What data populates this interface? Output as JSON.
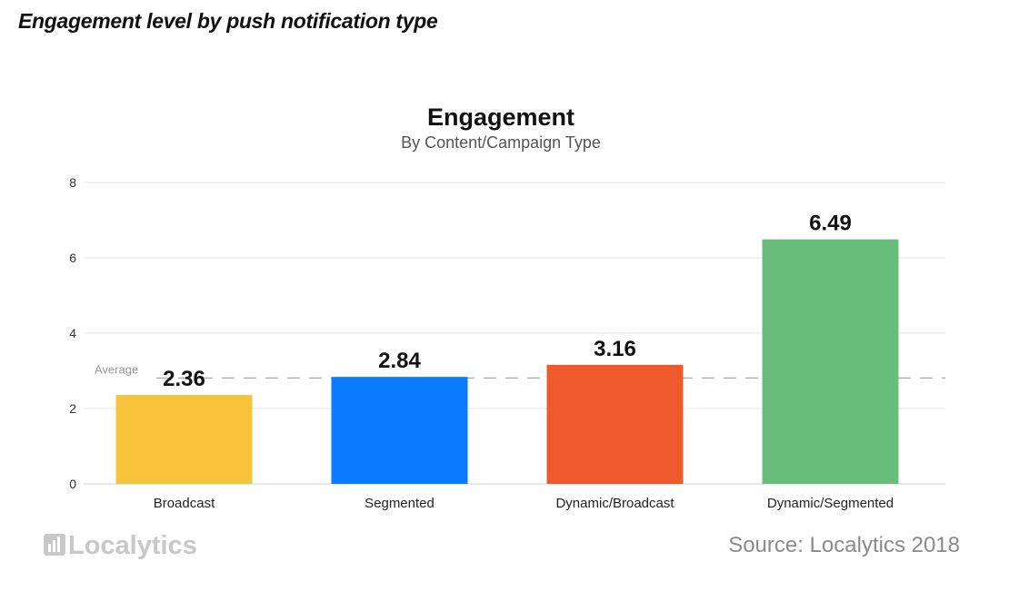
{
  "page_heading": "Engagement level by push notification type",
  "chart_data": {
    "type": "bar",
    "title": "Engagement",
    "subtitle": "By Content/Campaign Type",
    "categories": [
      "Broadcast",
      "Segmented",
      "Dynamic/Broadcast",
      "Dynamic/Segmented"
    ],
    "values": [
      2.36,
      2.84,
      3.16,
      6.49
    ],
    "data_labels": [
      "2.36",
      "2.84",
      "3.16",
      "6.49"
    ],
    "colors": [
      "#f7c33a",
      "#0a7bff",
      "#ef5a2c",
      "#69bd7b"
    ],
    "ylim": [
      0,
      8
    ],
    "yticks": [
      0,
      2,
      4,
      6,
      8
    ],
    "grid": true,
    "average": {
      "label": "Average",
      "value": 2.81
    },
    "xlabel": "",
    "ylabel": ""
  },
  "footer": {
    "brand": "Localytics",
    "source": "Source: Localytics 2018"
  }
}
